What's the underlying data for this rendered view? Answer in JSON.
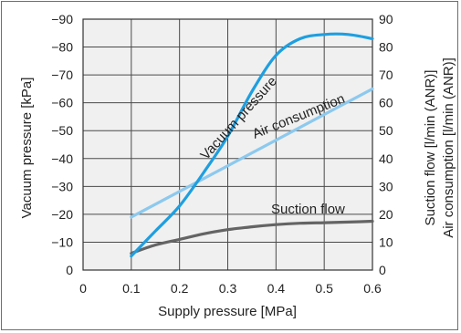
{
  "chart_data": {
    "type": "line",
    "xlabel": "Supply pressure [MPa]",
    "ylabel_left": "Vacuum pressure [kPa]",
    "ylabel_right_lines": [
      "Air consumption [l/min (ANR)]",
      "Suction flow [l/min (ANR)]"
    ],
    "x_ticks": [
      "0",
      "0.1",
      "0.2",
      "0.3",
      "0.4",
      "0.5",
      "0.6"
    ],
    "y_left_ticks": [
      "0",
      "−10",
      "−20",
      "−30",
      "−40",
      "−50",
      "−60",
      "−70",
      "−80",
      "−90"
    ],
    "y_right_ticks": [
      "0",
      "10",
      "20",
      "30",
      "40",
      "50",
      "60",
      "70",
      "80",
      "90"
    ],
    "xlim": [
      0,
      0.6
    ],
    "ylim_left": [
      0,
      -90
    ],
    "ylim_right": [
      0,
      90
    ],
    "grid": true,
    "series": [
      {
        "name": "Vacuum pressure",
        "axis": "left",
        "color": "#1e9fe0",
        "x": [
          0.1,
          0.15,
          0.2,
          0.25,
          0.3,
          0.35,
          0.4,
          0.45,
          0.5,
          0.55,
          0.6
        ],
        "y": [
          -5,
          -14,
          -23,
          -35,
          -48,
          -64,
          -77,
          -83,
          -84.5,
          -84.5,
          -83
        ]
      },
      {
        "name": "Air consumption",
        "axis": "right",
        "color": "#8cc9ee",
        "x": [
          0.1,
          0.6
        ],
        "y": [
          19,
          65
        ]
      },
      {
        "name": "Suction flow",
        "axis": "right",
        "color": "#646464",
        "x": [
          0.1,
          0.15,
          0.2,
          0.25,
          0.3,
          0.35,
          0.4,
          0.45,
          0.5,
          0.55,
          0.6
        ],
        "y": [
          6,
          9,
          11,
          13,
          14.5,
          15.5,
          16.3,
          16.8,
          17,
          17.2,
          17.5
        ]
      }
    ]
  }
}
